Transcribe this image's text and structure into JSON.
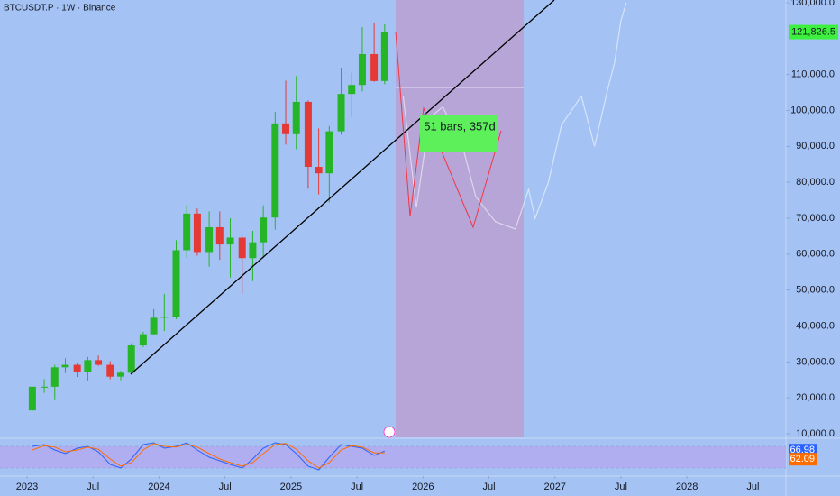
{
  "chart_data": {
    "type": "candlestick",
    "title": "BTCUSDT.P · 1W · Binance",
    "x": [
      2023.04,
      2023.13,
      2023.21,
      2023.29,
      2023.38,
      2023.46,
      2023.54,
      2023.63,
      2023.71,
      2023.79,
      2023.88,
      2023.96,
      2024.04,
      2024.13,
      2024.21,
      2024.29,
      2024.38,
      2024.46,
      2024.54,
      2024.63,
      2024.71,
      2024.79,
      2024.88,
      2024.96,
      2025.04,
      2025.13,
      2025.21,
      2025.29,
      2025.38,
      2025.46,
      2025.54,
      2025.63,
      2025.71
    ],
    "open": [
      16500,
      23100,
      23100,
      28500,
      29200,
      27200,
      30500,
      29200,
      25900,
      27000,
      34600,
      37700,
      42300,
      42600,
      61100,
      71300,
      60600,
      67500,
      62700,
      64600,
      58900,
      63300,
      70200,
      96400,
      93400,
      102400,
      84300,
      82500,
      94200,
      104600,
      107100,
      115700,
      108200
    ],
    "high": [
      23100,
      25200,
      29200,
      31000,
      29800,
      31400,
      31800,
      30200,
      27500,
      35200,
      38400,
      44700,
      48900,
      63900,
      73700,
      72700,
      71900,
      71900,
      70000,
      65000,
      66500,
      73600,
      99600,
      108300,
      109600,
      102800,
      95000,
      95700,
      111900,
      110500,
      123200,
      124500,
      124000
    ],
    "low": [
      16500,
      21400,
      19600,
      26900,
      25800,
      24800,
      28900,
      25200,
      24900,
      26600,
      34100,
      37600,
      38600,
      41900,
      59000,
      59600,
      56500,
      58400,
      53500,
      49000,
      52500,
      58900,
      66800,
      90500,
      89200,
      78200,
      76600,
      74400,
      93300,
      98200,
      105300,
      108000,
      107300
    ],
    "close": [
      23100,
      23100,
      28500,
      29200,
      27200,
      30500,
      29200,
      25900,
      27000,
      34600,
      37700,
      42300,
      42600,
      61100,
      71300,
      60600,
      67500,
      62700,
      64600,
      58900,
      63300,
      70200,
      96400,
      93400,
      102400,
      84300,
      82500,
      94200,
      104600,
      107100,
      115700,
      108200,
      121826.5
    ],
    "up_color": "#26b526",
    "down_color": "#e53935",
    "projection": {
      "color": "#ffffff",
      "x": [
        2025.85,
        2025.95,
        2026.05,
        2026.15,
        2026.3,
        2026.4,
        2026.55,
        2026.7,
        2026.8,
        2026.85,
        2026.95,
        2027.05,
        2027.2,
        2027.3,
        2027.4,
        2027.45,
        2027.5,
        2027.54
      ],
      "values": [
        104000,
        73000,
        98000,
        101000,
        90000,
        76000,
        69000,
        67000,
        78000,
        70000,
        80000,
        96000,
        104000,
        90000,
        106000,
        113000,
        125000,
        130000
      ]
    },
    "last_price": {
      "value": 121826.5,
      "label": "121,826.5"
    },
    "annotation": "51 bars, 357d",
    "xlim": [
      2022.795,
      2028.75
    ],
    "xticks": [
      {
        "value": 2023,
        "label": "2023"
      },
      {
        "value": 2023.5,
        "label": "Jul"
      },
      {
        "value": 2024,
        "label": "2024"
      },
      {
        "value": 2024.5,
        "label": "Jul"
      },
      {
        "value": 2025,
        "label": "2025"
      },
      {
        "value": 2025.5,
        "label": "Jul"
      },
      {
        "value": 2026,
        "label": "2026"
      },
      {
        "value": 2026.5,
        "label": "Jul"
      },
      {
        "value": 2027,
        "label": "2027"
      },
      {
        "value": 2027.5,
        "label": "Jul"
      },
      {
        "value": 2028,
        "label": "2028"
      },
      {
        "value": 2028.5,
        "label": "Jul"
      }
    ],
    "ylim": [
      9000,
      130750
    ],
    "yticks": [
      {
        "value": 130000,
        "label": "130,000.0"
      },
      {
        "value": 110000,
        "label": "110,000.0"
      },
      {
        "value": 100000,
        "label": "100,000.0"
      },
      {
        "value": 90000,
        "label": "90,000.0"
      },
      {
        "value": 80000,
        "label": "80,000.0"
      },
      {
        "value": 70000,
        "label": "70,000.0"
      },
      {
        "value": 60000,
        "label": "60,000.0"
      },
      {
        "value": 50000,
        "label": "50,000.0"
      },
      {
        "value": 40000,
        "label": "40,000.0"
      },
      {
        "value": 30000,
        "label": "30,000.0"
      },
      {
        "value": 20000,
        "label": "20,000.0"
      },
      {
        "value": 10000,
        "label": "10,000.0"
      }
    ],
    "stoch": {
      "ylim": [
        0,
        100
      ],
      "band": [
        20,
        80
      ],
      "series": [
        {
          "color": "#2962ff",
          "values": [
            80,
            85,
            70,
            60,
            75,
            80,
            65,
            30,
            20,
            45,
            85,
            90,
            75,
            80,
            90,
            70,
            50,
            40,
            30,
            20,
            45,
            75,
            90,
            85,
            60,
            25,
            15,
            50,
            85,
            80,
            75,
            55,
            66.98
          ]
        },
        {
          "color": "#ff6d00",
          "values": [
            70,
            82,
            78,
            65,
            70,
            78,
            72,
            45,
            25,
            35,
            70,
            88,
            80,
            78,
            86,
            78,
            60,
            45,
            35,
            25,
            35,
            60,
            85,
            88,
            72,
            40,
            20,
            35,
            70,
            82,
            78,
            62,
            62.09
          ]
        }
      ]
    }
  }
}
